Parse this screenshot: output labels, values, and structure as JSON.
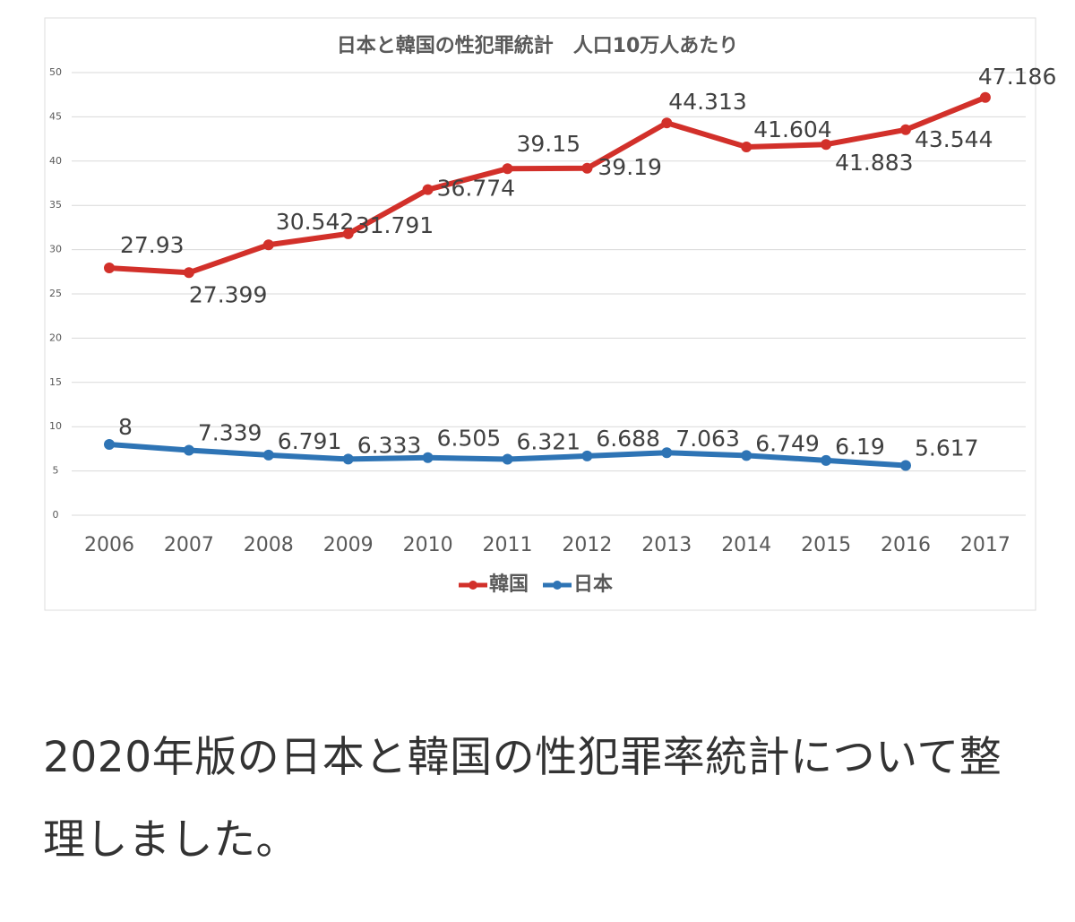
{
  "chart_data": {
    "type": "line",
    "title": "日本と韓国の性犯罪統計　人口10万人あたり",
    "categories": [
      "2006",
      "2007",
      "2008",
      "2009",
      "2010",
      "2011",
      "2012",
      "2013",
      "2014",
      "2015",
      "2016",
      "2017"
    ],
    "series": [
      {
        "name": "韓国",
        "color": "#d2302a",
        "values": [
          27.93,
          27.399,
          30.542,
          31.791,
          36.774,
          39.15,
          39.19,
          44.313,
          41.604,
          41.883,
          43.544,
          47.186
        ]
      },
      {
        "name": "日本",
        "color": "#2e74b5",
        "values": [
          8,
          7.339,
          6.791,
          6.333,
          6.505,
          6.321,
          6.688,
          7.063,
          6.749,
          6.19,
          5.617,
          null
        ]
      }
    ],
    "ylim": [
      0,
      50
    ],
    "yticks": [
      0,
      5,
      10,
      15,
      20,
      25,
      30,
      35,
      40,
      45,
      50
    ],
    "grid": true,
    "legend": "bottom"
  },
  "caption": "2020年版の日本と韓国の性犯罪率統計について整理しました。"
}
